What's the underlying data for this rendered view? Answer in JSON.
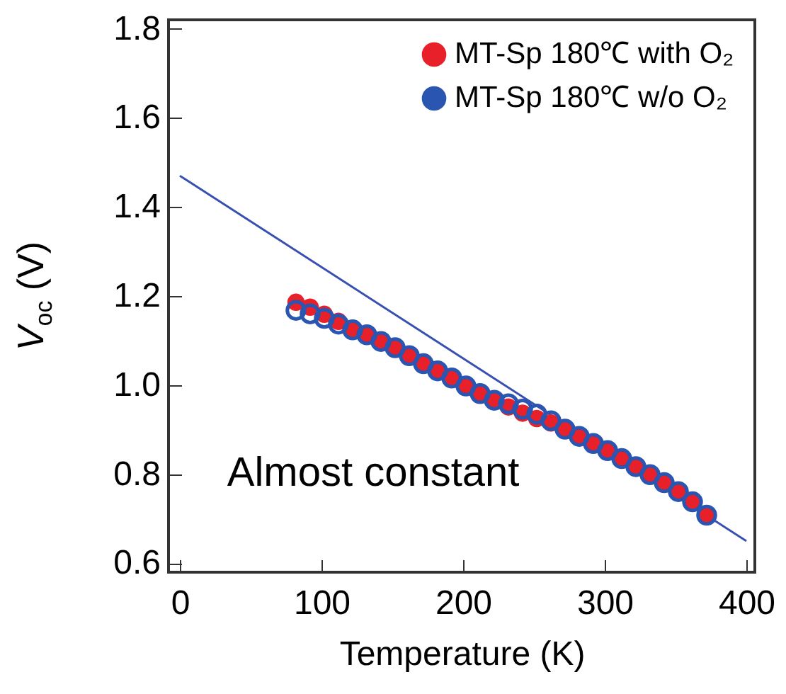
{
  "chart_data": {
    "type": "scatter",
    "xlabel": "Temperature (K)",
    "ylabel": "V$_{oc}$ (V)",
    "xlim": [
      -8,
      406
    ],
    "ylim": [
      0.58,
      1.82
    ],
    "xticks": [
      0,
      100,
      200,
      300,
      400
    ],
    "yticks": [
      0.6,
      0.8,
      {
        "value": 1,
        "label": "1.0"
      },
      1.2,
      1.4,
      1.6,
      1.8
    ],
    "grid": false,
    "legend": "top right",
    "annotations": [
      "Almost constant"
    ],
    "series": [
      {
        "name": "MT-Sp 180℃ with O₂",
        "color": "#e8202a",
        "marker": "circle",
        "x": [
          82,
          92,
          102,
          112,
          122,
          132,
          142,
          152,
          162,
          172,
          182,
          192,
          202,
          212,
          222,
          232,
          242,
          252,
          262,
          272,
          282,
          292,
          302,
          312,
          322,
          332,
          342,
          352,
          362,
          372
        ],
        "values": [
          1.186,
          1.175,
          1.159,
          1.143,
          1.127,
          1.113,
          1.098,
          1.084,
          1.066,
          1.048,
          1.032,
          1.016,
          0.998,
          0.981,
          0.966,
          0.951,
          0.937,
          0.925,
          0.915,
          0.901,
          0.885,
          0.869,
          0.853,
          0.835,
          0.817,
          0.799,
          0.781,
          0.761,
          0.738,
          0.708
        ]
      },
      {
        "name": "MT-Sp 180℃ w/o O₂",
        "color": "#2a55b0",
        "marker": "circle",
        "x": [
          82,
          92,
          102,
          112,
          122,
          132,
          142,
          152,
          162,
          172,
          182,
          192,
          202,
          212,
          222,
          232,
          242,
          252,
          262,
          272,
          282,
          292,
          302,
          312,
          322,
          332,
          342,
          352,
          362,
          372
        ],
        "values": [
          1.168,
          1.16,
          1.15,
          1.137,
          1.124,
          1.113,
          1.098,
          1.084,
          1.066,
          1.048,
          1.032,
          1.016,
          0.998,
          0.981,
          0.966,
          0.958,
          0.946,
          0.935,
          0.92,
          0.901,
          0.885,
          0.869,
          0.853,
          0.835,
          0.817,
          0.799,
          0.781,
          0.761,
          0.738,
          0.708
        ]
      },
      {
        "type": "line",
        "marker": "none",
        "color": "#3a50b0",
        "x": [
          0,
          400
        ],
        "values": [
          1.47,
          0.65
        ]
      }
    ]
  }
}
